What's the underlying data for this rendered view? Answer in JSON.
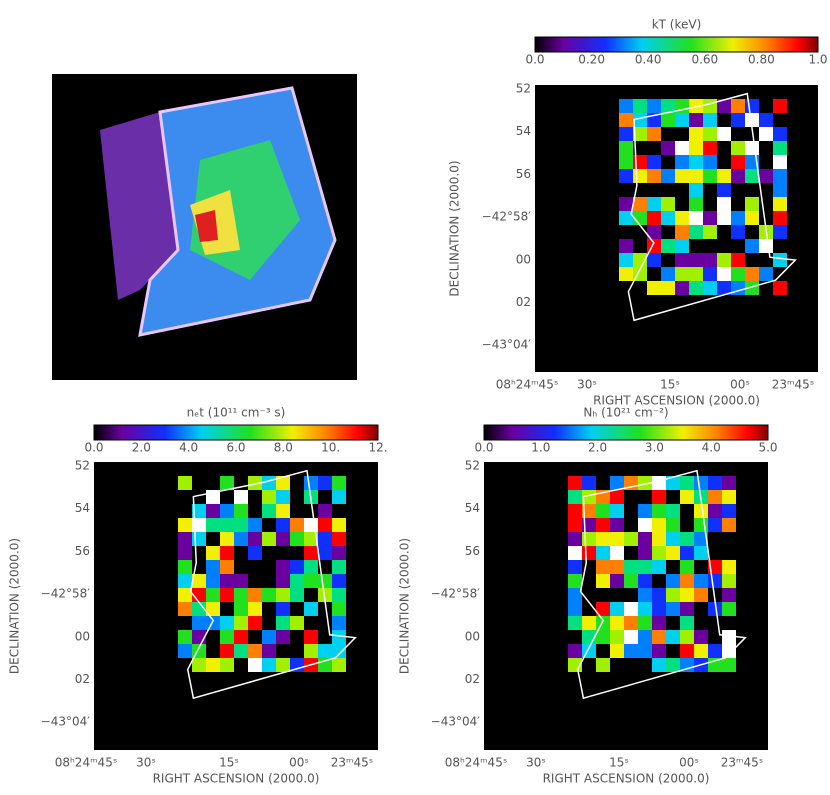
{
  "panels": [
    {},
    {
      "colorbar": {
        "title": "kT (keV)",
        "ticks": [
          "0.0",
          "0.20",
          "0.40",
          "0.60",
          "0.80",
          "1.0"
        ]
      },
      "yaxis": {
        "title": "DECLINATION (2000.0)",
        "ticks": [
          "52",
          "54",
          "56",
          "−42°58′",
          "00",
          "02",
          "−43°04′"
        ]
      },
      "xaxis": {
        "title": "RIGHT ASCENSION (2000.0)",
        "ticks": [
          "08ʰ24ᵐ45ˢ",
          "30ˢ",
          "15ˢ",
          "00ˢ",
          "23ᵐ45ˢ"
        ]
      }
    },
    {
      "colorbar": {
        "title": "nₑt (10¹¹ cm⁻³ s)",
        "ticks": [
          "0.0",
          "2.0",
          "4.0",
          "6.0",
          "8.0",
          "10.",
          "12."
        ]
      },
      "yaxis": {
        "title": "DECLINATION (2000.0)",
        "ticks": [
          "52",
          "54",
          "56",
          "−42°58′",
          "00",
          "02",
          "−43°04′"
        ]
      },
      "xaxis": {
        "title": "RIGHT ASCENSION (2000.0)",
        "ticks": [
          "08ʰ24ᵐ45ˢ",
          "30ˢ",
          "15ˢ",
          "00ˢ",
          "23ᵐ45ˢ"
        ]
      }
    },
    {
      "colorbar": {
        "title": "Nₕ (10²¹ cm⁻²)",
        "ticks": [
          "0.0",
          "1.0",
          "2.0",
          "3.0",
          "4.0",
          "5.0"
        ]
      },
      "yaxis": {
        "title": "DECLINATION (2000.0)",
        "ticks": [
          "52",
          "54",
          "56",
          "−42°58′",
          "00",
          "02",
          "−43°04′"
        ]
      },
      "xaxis": {
        "title": "RIGHT ASCENSION (2000.0)",
        "ticks": [
          "08ʰ24ᵐ45ˢ",
          "30ˢ",
          "15ˢ",
          "00ˢ",
          "23ᵐ45ˢ"
        ]
      }
    }
  ]
}
